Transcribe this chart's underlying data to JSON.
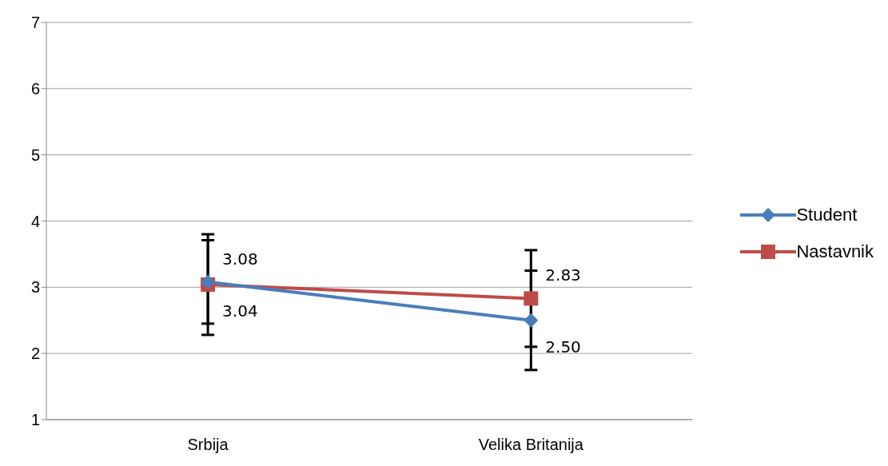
{
  "chart_data": {
    "type": "line",
    "categories": [
      "Srbija",
      "Velika Britanija"
    ],
    "series": [
      {
        "name": "Student",
        "color": "#4a7ebb",
        "marker": "diamond",
        "values": [
          3.08,
          2.5
        ],
        "errors": [
          0.63,
          0.75
        ],
        "value_labels": [
          "3.08",
          "2.50"
        ]
      },
      {
        "name": "Nastavnik",
        "color": "#be4b48",
        "marker": "square",
        "values": [
          3.04,
          2.83
        ],
        "errors": [
          0.76,
          0.73
        ],
        "value_labels": [
          "3.04",
          "2.83"
        ]
      }
    ],
    "ylim": [
      1,
      7
    ],
    "yticks": [
      1,
      2,
      3,
      4,
      5,
      6,
      7
    ],
    "grid": "y",
    "legend": "right",
    "line_style": "solid"
  }
}
